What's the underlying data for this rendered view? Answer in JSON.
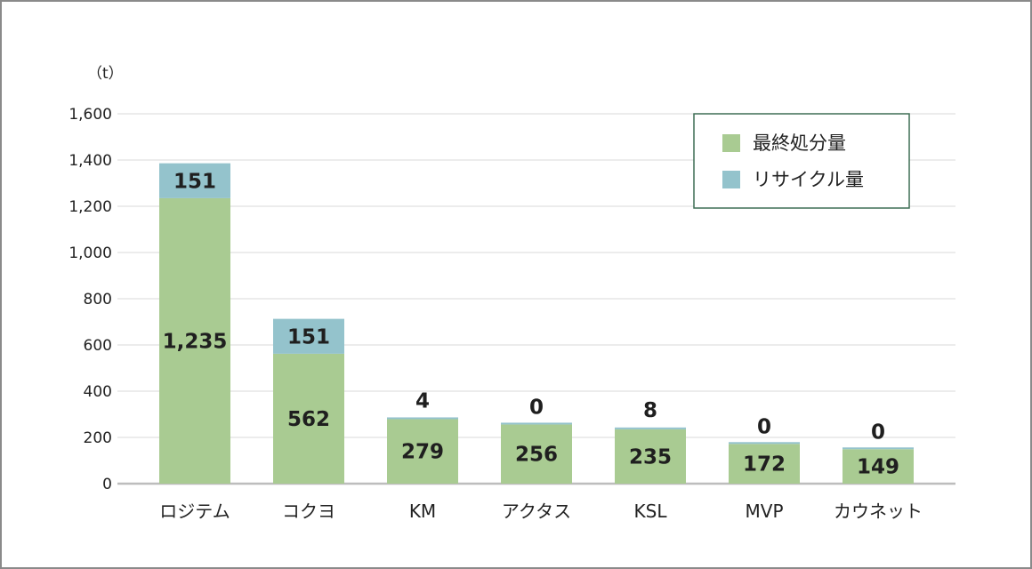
{
  "chart_data": {
    "type": "bar",
    "stacked": true,
    "unit_label": "（t）",
    "categories": [
      "ロジテム",
      "コクヨ",
      "KM",
      "アクタス",
      "KSL",
      "MVP",
      "カウネット"
    ],
    "series": [
      {
        "name": "最終処分量",
        "values": [
          1235,
          562,
          279,
          256,
          235,
          172,
          149
        ],
        "color": "#a9cb92"
      },
      {
        "name": "リサイクル量",
        "values": [
          151,
          151,
          4,
          0,
          8,
          0,
          0
        ],
        "color": "#94c3cc"
      }
    ],
    "value_labels": {
      "disposal": [
        "1,235",
        "562",
        "279",
        "256",
        "235",
        "172",
        "149"
      ],
      "recycle": [
        "151",
        "151",
        "4",
        "0",
        "8",
        "0",
        "0"
      ]
    },
    "ylim": [
      0,
      1600
    ],
    "yticks": [
      "0",
      "200",
      "400",
      "600",
      "800",
      "1,000",
      "1,200",
      "1,400",
      "1,600"
    ],
    "grid": true,
    "legend_position": "top-right"
  }
}
